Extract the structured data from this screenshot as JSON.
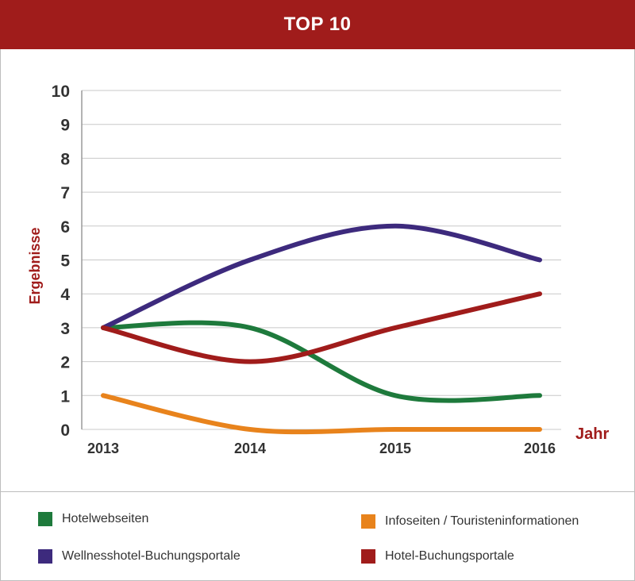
{
  "header": {
    "title": "TOP 10"
  },
  "colors": {
    "header_bg": "#a01c1b",
    "axis_label": "#a01c1b",
    "grid": "#c8c8c8",
    "tick_text": "#333333"
  },
  "chart_data": {
    "type": "line",
    "title": "TOP 10",
    "xlabel": "Jahr",
    "ylabel": "Ergebnisse",
    "x": [
      "2013",
      "2014",
      "2015",
      "2016"
    ],
    "ylim": [
      0,
      10
    ],
    "yticks": [
      0,
      1,
      2,
      3,
      4,
      5,
      6,
      7,
      8,
      9,
      10
    ],
    "grid": true,
    "legend_position": "bottom",
    "series": [
      {
        "name": "Hotelwebseiten",
        "color": "#1e7a3c",
        "values": [
          3,
          3,
          1,
          1
        ]
      },
      {
        "name": "Infoseiten / Touristeninformationen",
        "color": "#e8831c",
        "values": [
          1,
          0,
          0,
          0
        ]
      },
      {
        "name": "Wellnesshotel-Buchungsportale",
        "color": "#3d2a7d",
        "values": [
          3,
          5,
          6,
          5
        ]
      },
      {
        "name": "Hotel-Buchungsportale",
        "color": "#a01c1b",
        "values": [
          3,
          2,
          3,
          4
        ]
      }
    ]
  }
}
